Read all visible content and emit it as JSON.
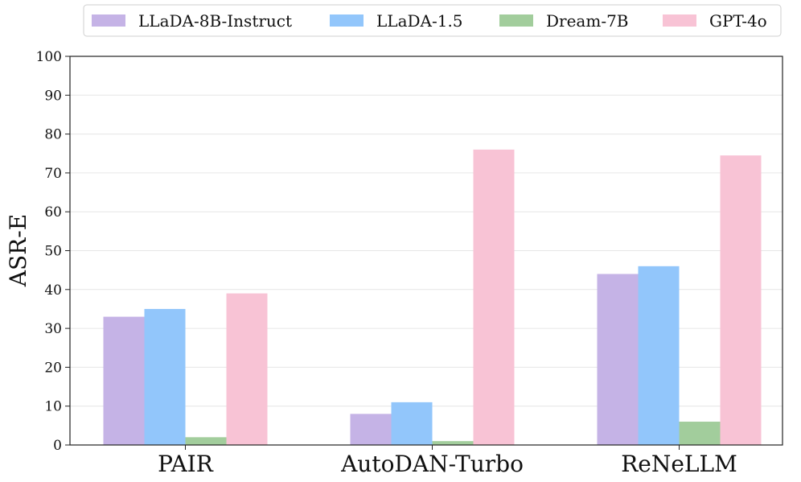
{
  "chart_data": {
    "type": "bar",
    "title": "",
    "xlabel": "",
    "ylabel": "ASR-E",
    "categories": [
      "PAIR",
      "AutoDAN-Turbo",
      "ReNeLLM"
    ],
    "series": [
      {
        "name": "LLaDA-8B-Instruct",
        "color": "#c5b3e6",
        "values": [
          33,
          8,
          44
        ]
      },
      {
        "name": "LLaDA-1.5",
        "color": "#92c6fb",
        "values": [
          35,
          11,
          46
        ]
      },
      {
        "name": "Dream-7B",
        "color": "#a2cd9c",
        "values": [
          2,
          1,
          6
        ]
      },
      {
        "name": "GPT-4o",
        "color": "#f8c3d5",
        "values": [
          39,
          76,
          74.5
        ]
      }
    ],
    "ylim": [
      0,
      100
    ],
    "yticks": [
      0,
      10,
      20,
      30,
      40,
      50,
      60,
      70,
      80,
      90,
      100
    ],
    "grid": true,
    "legend_position": "top"
  }
}
